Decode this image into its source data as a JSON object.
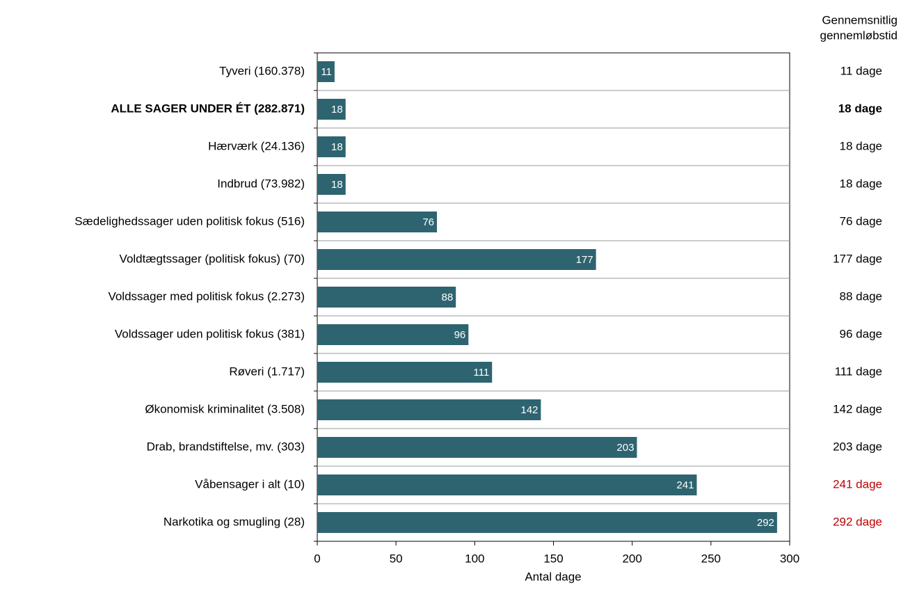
{
  "chart_data": {
    "type": "bar",
    "orientation": "horizontal",
    "x_label": "Antal dage",
    "column_header": [
      "Gennemsnitlig",
      "gennemløbstid"
    ],
    "categories": [
      "Tyveri (160.378)",
      "ALLE SAGER UNDER ÉT (282.871)",
      "Hærværk (24.136)",
      "Indbrud (73.982)",
      "Sædelighedssager uden politisk fokus (516)",
      "Voldtægtssager (politisk fokus) (70)",
      "Voldssager med politisk fokus (2.273)",
      "Voldssager uden politisk fokus (381)",
      "Røveri (1.717)",
      "Økonomisk kriminalitet (3.508)",
      "Drab, brandstiftelse, mv. (303)",
      "Våbensager i alt (10)",
      "Narkotika og smugling (28)"
    ],
    "values": [
      11,
      18,
      18,
      18,
      76,
      177,
      88,
      96,
      111,
      142,
      203,
      241,
      292
    ],
    "right_labels": [
      "11 dage",
      "18 dage",
      "18 dage",
      "18 dage",
      "76 dage",
      "177 dage",
      "88 dage",
      "96 dage",
      "111 dage",
      "142 dage",
      "203 dage",
      "241 dage",
      "292 dage"
    ],
    "right_label_colors": [
      "#000000",
      "#000000",
      "#000000",
      "#000000",
      "#000000",
      "#000000",
      "#000000",
      "#000000",
      "#000000",
      "#000000",
      "#000000",
      "#c00000",
      "#c00000"
    ],
    "bold_rows": [
      false,
      true,
      false,
      false,
      false,
      false,
      false,
      false,
      false,
      false,
      false,
      false,
      false
    ],
    "color": "#2e6470",
    "xlim": [
      0,
      300
    ],
    "xticks": [
      0,
      50,
      100,
      150,
      200,
      250,
      300
    ],
    "grid": true
  }
}
